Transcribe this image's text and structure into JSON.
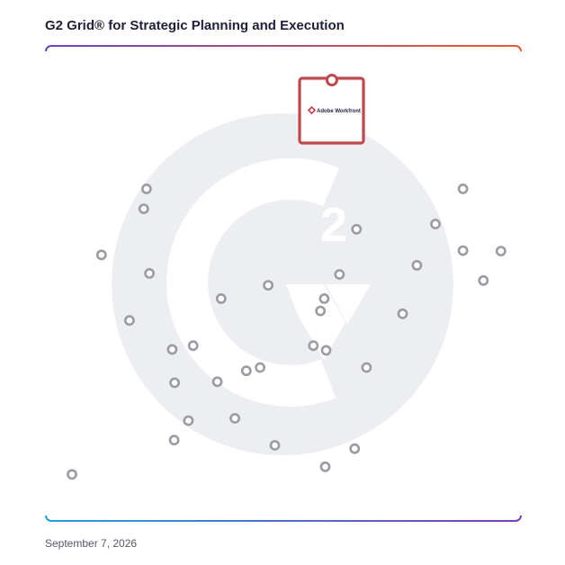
{
  "chart_data": {
    "type": "scatter",
    "title": "G2 Grid® for Strategic Planning and Execution",
    "date": "September 7, 2026",
    "xlim": [
      0,
      100
    ],
    "ylim": [
      0,
      100
    ],
    "grid": "quadrants",
    "watermark": "g2-logo",
    "colors": {
      "frame_top_left": "#6a46bf",
      "frame_top_right": "#ee5a2c",
      "frame_bottom_left": "#23a0dc",
      "frame_bottom_right": "#7d3dbd",
      "point": "#9a9ba5",
      "featured": "#c0474a",
      "watermark": "#eceef2"
    },
    "featured": {
      "label": "Adobe Workfront",
      "icon": "adobe-workfront-logo-icon",
      "x": 60.2,
      "y": 92.8
    },
    "points": [
      {
        "x": 21.2,
        "y": 69.9
      },
      {
        "x": 20.6,
        "y": 65.7
      },
      {
        "x": 11.7,
        "y": 56.0
      },
      {
        "x": 21.8,
        "y": 52.1
      },
      {
        "x": 46.8,
        "y": 49.6
      },
      {
        "x": 36.9,
        "y": 46.8
      },
      {
        "x": 17.6,
        "y": 42.2
      },
      {
        "x": 26.6,
        "y": 36.1
      },
      {
        "x": 31.0,
        "y": 36.9
      },
      {
        "x": 27.1,
        "y": 29.1
      },
      {
        "x": 36.1,
        "y": 29.3
      },
      {
        "x": 42.2,
        "y": 31.6
      },
      {
        "x": 45.1,
        "y": 32.3
      },
      {
        "x": 30.0,
        "y": 21.1
      },
      {
        "x": 39.8,
        "y": 21.6
      },
      {
        "x": 27.0,
        "y": 17.0
      },
      {
        "x": 48.2,
        "y": 15.9
      },
      {
        "x": 5.5,
        "y": 9.8
      },
      {
        "x": 65.4,
        "y": 61.4
      },
      {
        "x": 61.8,
        "y": 51.9
      },
      {
        "x": 58.6,
        "y": 46.8
      },
      {
        "x": 57.8,
        "y": 44.2
      },
      {
        "x": 56.3,
        "y": 36.9
      },
      {
        "x": 59.0,
        "y": 35.9
      },
      {
        "x": 67.5,
        "y": 32.3
      },
      {
        "x": 65.0,
        "y": 15.2
      },
      {
        "x": 58.8,
        "y": 11.4
      },
      {
        "x": 87.8,
        "y": 69.9
      },
      {
        "x": 82.0,
        "y": 62.5
      },
      {
        "x": 87.8,
        "y": 56.9
      },
      {
        "x": 78.1,
        "y": 53.8
      },
      {
        "x": 95.8,
        "y": 56.8
      },
      {
        "x": 92.1,
        "y": 50.6
      },
      {
        "x": 75.1,
        "y": 43.6
      }
    ]
  }
}
